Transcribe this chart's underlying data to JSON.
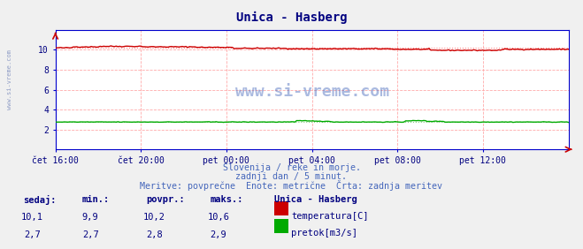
{
  "title": "Unica - Hasberg",
  "title_color": "#000080",
  "bg_color": "#f0f0f0",
  "plot_bg_color": "#ffffff",
  "grid_color": "#ffaaaa",
  "border_color": "#0000cc",
  "x_labels": [
    "čet 16:00",
    "čet 20:00",
    "pet 00:00",
    "pet 04:00",
    "pet 08:00",
    "pet 12:00"
  ],
  "x_ticks_pos": [
    0.0,
    0.1667,
    0.3333,
    0.5,
    0.6667,
    0.8333
  ],
  "y_min": 0,
  "y_max": 12,
  "y_ticks": [
    2,
    4,
    6,
    8,
    10
  ],
  "temp_color": "#cc0000",
  "flow_color": "#00aa00",
  "avg_temp_color": "#ff8888",
  "avg_flow_color": "#88cc88",
  "watermark_text": "www.si-vreme.com",
  "watermark_color": "#4466bb",
  "watermark_alpha": 0.45,
  "subtitle1": "Slovenija / reke in morje.",
  "subtitle2": "zadnji dan / 5 minut.",
  "subtitle3": "Meritve: povprečne  Enote: metrične  Črta: zadnja meritev",
  "subtitle_color": "#4466bb",
  "label_color": "#000080",
  "table_header": [
    "sedaj:",
    "min.:",
    "povpr.:",
    "maks.:"
  ],
  "table_data": [
    [
      "10,1",
      "9,9",
      "10,2",
      "10,6"
    ],
    [
      "2,7",
      "2,7",
      "2,8",
      "2,9"
    ]
  ],
  "legend_title": "Unica - Hasberg",
  "legend_items": [
    "temperatura[C]",
    "pretok[m3/s]"
  ],
  "legend_colors": [
    "#cc0000",
    "#00aa00"
  ],
  "avg_temp": 10.2,
  "avg_flow": 2.8,
  "num_points": 288
}
